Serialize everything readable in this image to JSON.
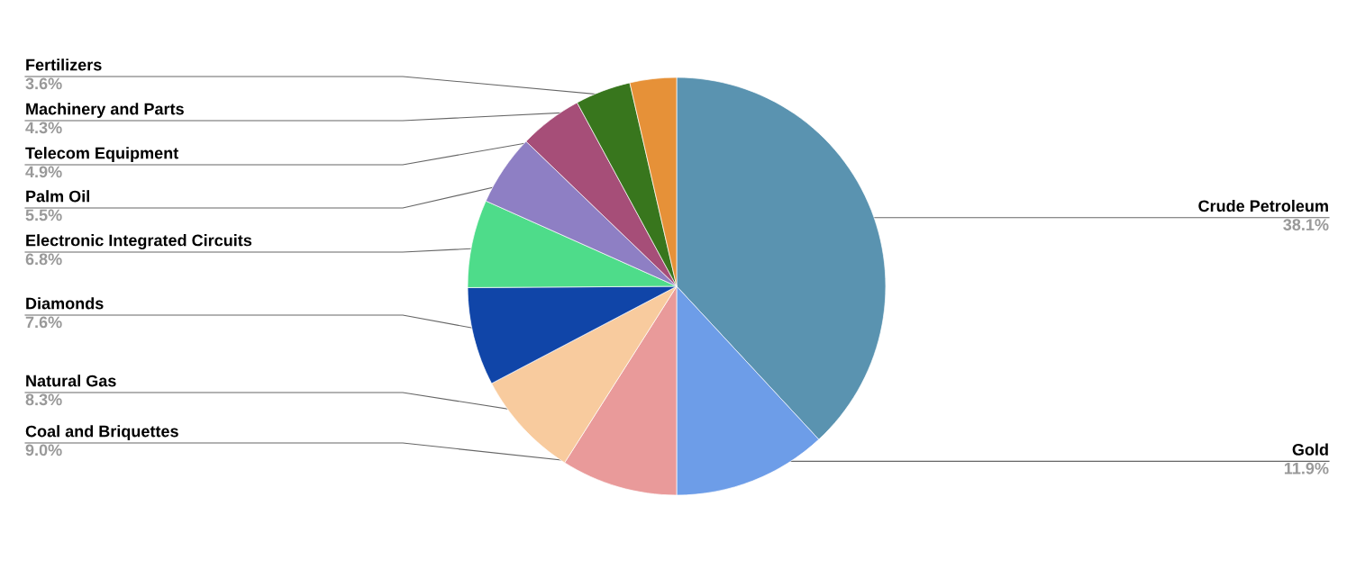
{
  "chart_data": {
    "type": "pie",
    "categories": [
      "Crude Petroleum",
      "Gold",
      "Coal and Briquettes",
      "Natural Gas",
      "Diamonds",
      "Electronic Integrated Circuits",
      "Palm Oil",
      "Telecom Equipment",
      "Machinery and Parts",
      "Fertilizers"
    ],
    "values": [
      38.1,
      11.9,
      9.0,
      8.3,
      7.6,
      6.8,
      5.5,
      4.9,
      4.3,
      3.6
    ],
    "colors": [
      "#5a93b0",
      "#6d9de8",
      "#e99a9a",
      "#f8cb9e",
      "#1045a8",
      "#4edc8a",
      "#8e7fc4",
      "#a64e78",
      "#38761d",
      "#e69138"
    ],
    "value_labels": [
      "38.1%",
      "11.9%",
      "9.0%",
      "8.3%",
      "7.6%",
      "6.8%",
      "5.5%",
      "4.9%",
      "4.3%",
      "3.6%"
    ]
  }
}
